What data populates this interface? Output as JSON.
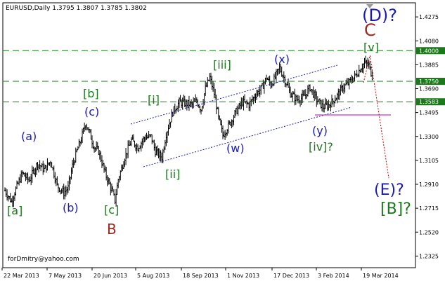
{
  "chart_data": {
    "type": "ohlc",
    "title": "EURUSD,Daily  1.3795 1.3807 1.3785 1.3802",
    "symbol": "EURUSD",
    "timeframe": "Daily",
    "last_bar": {
      "open": 1.3795,
      "high": 1.3807,
      "low": 1.3785,
      "close": 1.3802
    },
    "watermark": "forDmitry@yahoo.com",
    "y_ticks": [
      "1.4275",
      "1.4080",
      "1.3885",
      "1.3690",
      "1.3495",
      "1.3300",
      "1.3105",
      "1.2910",
      "1.2715",
      "1.2520",
      "1.2325"
    ],
    "x_ticks": [
      "22 Mar 2013",
      "7 May 2013",
      "20 Jun 2013",
      "5 Aug 2013",
      "18 Sep 2013",
      "1 Nov 2013",
      "17 Dec 2013",
      "3 Feb 2014",
      "19 Mar 2014"
    ],
    "ylim": [
      1.223,
      1.439
    ],
    "levels": [
      {
        "label": "1.4000",
        "value": 1.4
      },
      {
        "label": "1.3750",
        "value": 1.375
      },
      {
        "label": "1.3583",
        "value": 1.3583
      }
    ],
    "price_path": [
      [
        0,
        1.286
      ],
      [
        6,
        1.277
      ],
      [
        10,
        1.287
      ],
      [
        16,
        1.3
      ],
      [
        22,
        1.294
      ],
      [
        30,
        1.308
      ],
      [
        36,
        1.303
      ],
      [
        42,
        1.31
      ],
      [
        48,
        1.29
      ],
      [
        54,
        1.284
      ],
      [
        58,
        1.288
      ],
      [
        62,
        1.306
      ],
      [
        66,
        1.318
      ],
      [
        70,
        1.328
      ],
      [
        74,
        1.341
      ],
      [
        78,
        1.332
      ],
      [
        82,
        1.321
      ],
      [
        86,
        1.318
      ],
      [
        92,
        1.3
      ],
      [
        98,
        1.286
      ],
      [
        101,
        1.278
      ],
      [
        104,
        1.295
      ],
      [
        110,
        1.313
      ],
      [
        116,
        1.327
      ],
      [
        122,
        1.321
      ],
      [
        128,
        1.329
      ],
      [
        134,
        1.33
      ],
      [
        138,
        1.318
      ],
      [
        144,
        1.313
      ],
      [
        148,
        1.332
      ],
      [
        154,
        1.35
      ],
      [
        160,
        1.358
      ],
      [
        166,
        1.357
      ],
      [
        172,
        1.356
      ],
      [
        176,
        1.359
      ],
      [
        180,
        1.352
      ],
      [
        184,
        1.369
      ],
      [
        188,
        1.378
      ],
      [
        192,
        1.365
      ],
      [
        196,
        1.345
      ],
      [
        200,
        1.331
      ],
      [
        206,
        1.34
      ],
      [
        212,
        1.35
      ],
      [
        218,
        1.358
      ],
      [
        224,
        1.356
      ],
      [
        230,
        1.364
      ],
      [
        236,
        1.37
      ],
      [
        240,
        1.378
      ],
      [
        244,
        1.372
      ],
      [
        248,
        1.378
      ],
      [
        252,
        1.386
      ],
      [
        256,
        1.378
      ],
      [
        262,
        1.365
      ],
      [
        268,
        1.36
      ],
      [
        274,
        1.362
      ],
      [
        280,
        1.37
      ],
      [
        286,
        1.36
      ],
      [
        292,
        1.354
      ],
      [
        298,
        1.356
      ],
      [
        304,
        1.362
      ],
      [
        310,
        1.37
      ],
      [
        316,
        1.374
      ],
      [
        322,
        1.38
      ],
      [
        326,
        1.385
      ],
      [
        330,
        1.39
      ],
      [
        334,
        1.388
      ],
      [
        337,
        1.379
      ]
    ],
    "wave_labels": [
      {
        "text": "[a]",
        "color": "#1a7a1a"
      },
      {
        "text": "(a)",
        "color": "#1a1ab8"
      },
      {
        "text": "(b)",
        "color": "#1a1ab8"
      },
      {
        "text": "[b]",
        "color": "#1a7a1a"
      },
      {
        "text": "(c)",
        "color": "#1a1ab8"
      },
      {
        "text": "[c]",
        "color": "#1a7a1a"
      },
      {
        "text": "B",
        "color": "#a0261e"
      },
      {
        "text": "[i]",
        "color": "#1a7a1a"
      },
      {
        "text": "[ii]",
        "color": "#1a7a1a"
      },
      {
        "text": "[iii]",
        "color": "#1a7a1a"
      },
      {
        "text": "(w)",
        "color": "#1a1ab8"
      },
      {
        "text": "(x)",
        "color": "#1a1ab8"
      },
      {
        "text": "(y)",
        "color": "#1a1ab8"
      },
      {
        "text": "[iv]?",
        "color": "#1a7a1a"
      },
      {
        "text": "[v]",
        "color": "#1a7a1a"
      },
      {
        "text": "C",
        "color": "#a0261e"
      },
      {
        "text": "(D)?",
        "color": "#1a1ab8"
      },
      {
        "text": "(E)?",
        "color": "#1a1ab8"
      },
      {
        "text": "[B]?",
        "color": "#1a7a1a"
      }
    ],
    "forecast": {
      "from": [
        337,
        1.396
      ],
      "to": [
        370,
        1.296
      ]
    },
    "colors": {
      "bars": "#000000",
      "level_lines": "#1a7a1a",
      "channel": "#1a1ab8",
      "forecast": "#c00000",
      "support_line": "#cc33cc"
    }
  }
}
